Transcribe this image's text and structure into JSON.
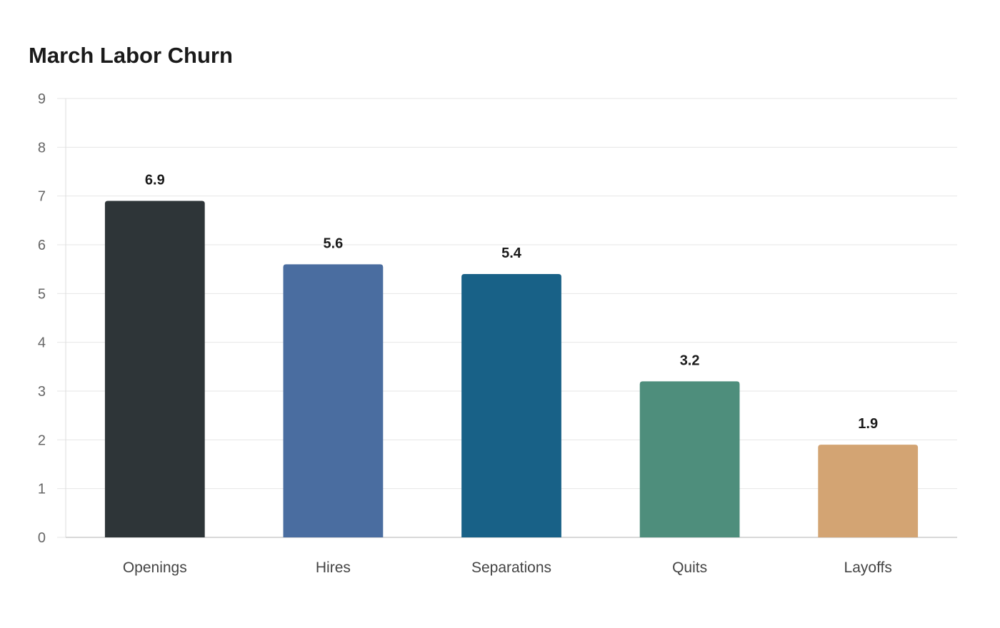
{
  "chart_data": {
    "type": "bar",
    "title": "March Labor Churn",
    "xlabel": "",
    "ylabel": "",
    "categories": [
      "Openings",
      "Hires",
      "Separations",
      "Quits",
      "Layoffs"
    ],
    "values": [
      6.9,
      5.6,
      5.4,
      3.2,
      1.9
    ],
    "value_labels": [
      "6.9",
      "5.6",
      "5.4",
      "3.2",
      "1.9"
    ],
    "colors": [
      "#2e3538",
      "#4a6da0",
      "#186187",
      "#4e8e7c",
      "#d3a473"
    ],
    "ylim": [
      0,
      9
    ],
    "yticks": [
      0,
      1,
      2,
      3,
      4,
      5,
      6,
      7,
      8,
      9
    ],
    "grid": true,
    "legend": "none"
  }
}
